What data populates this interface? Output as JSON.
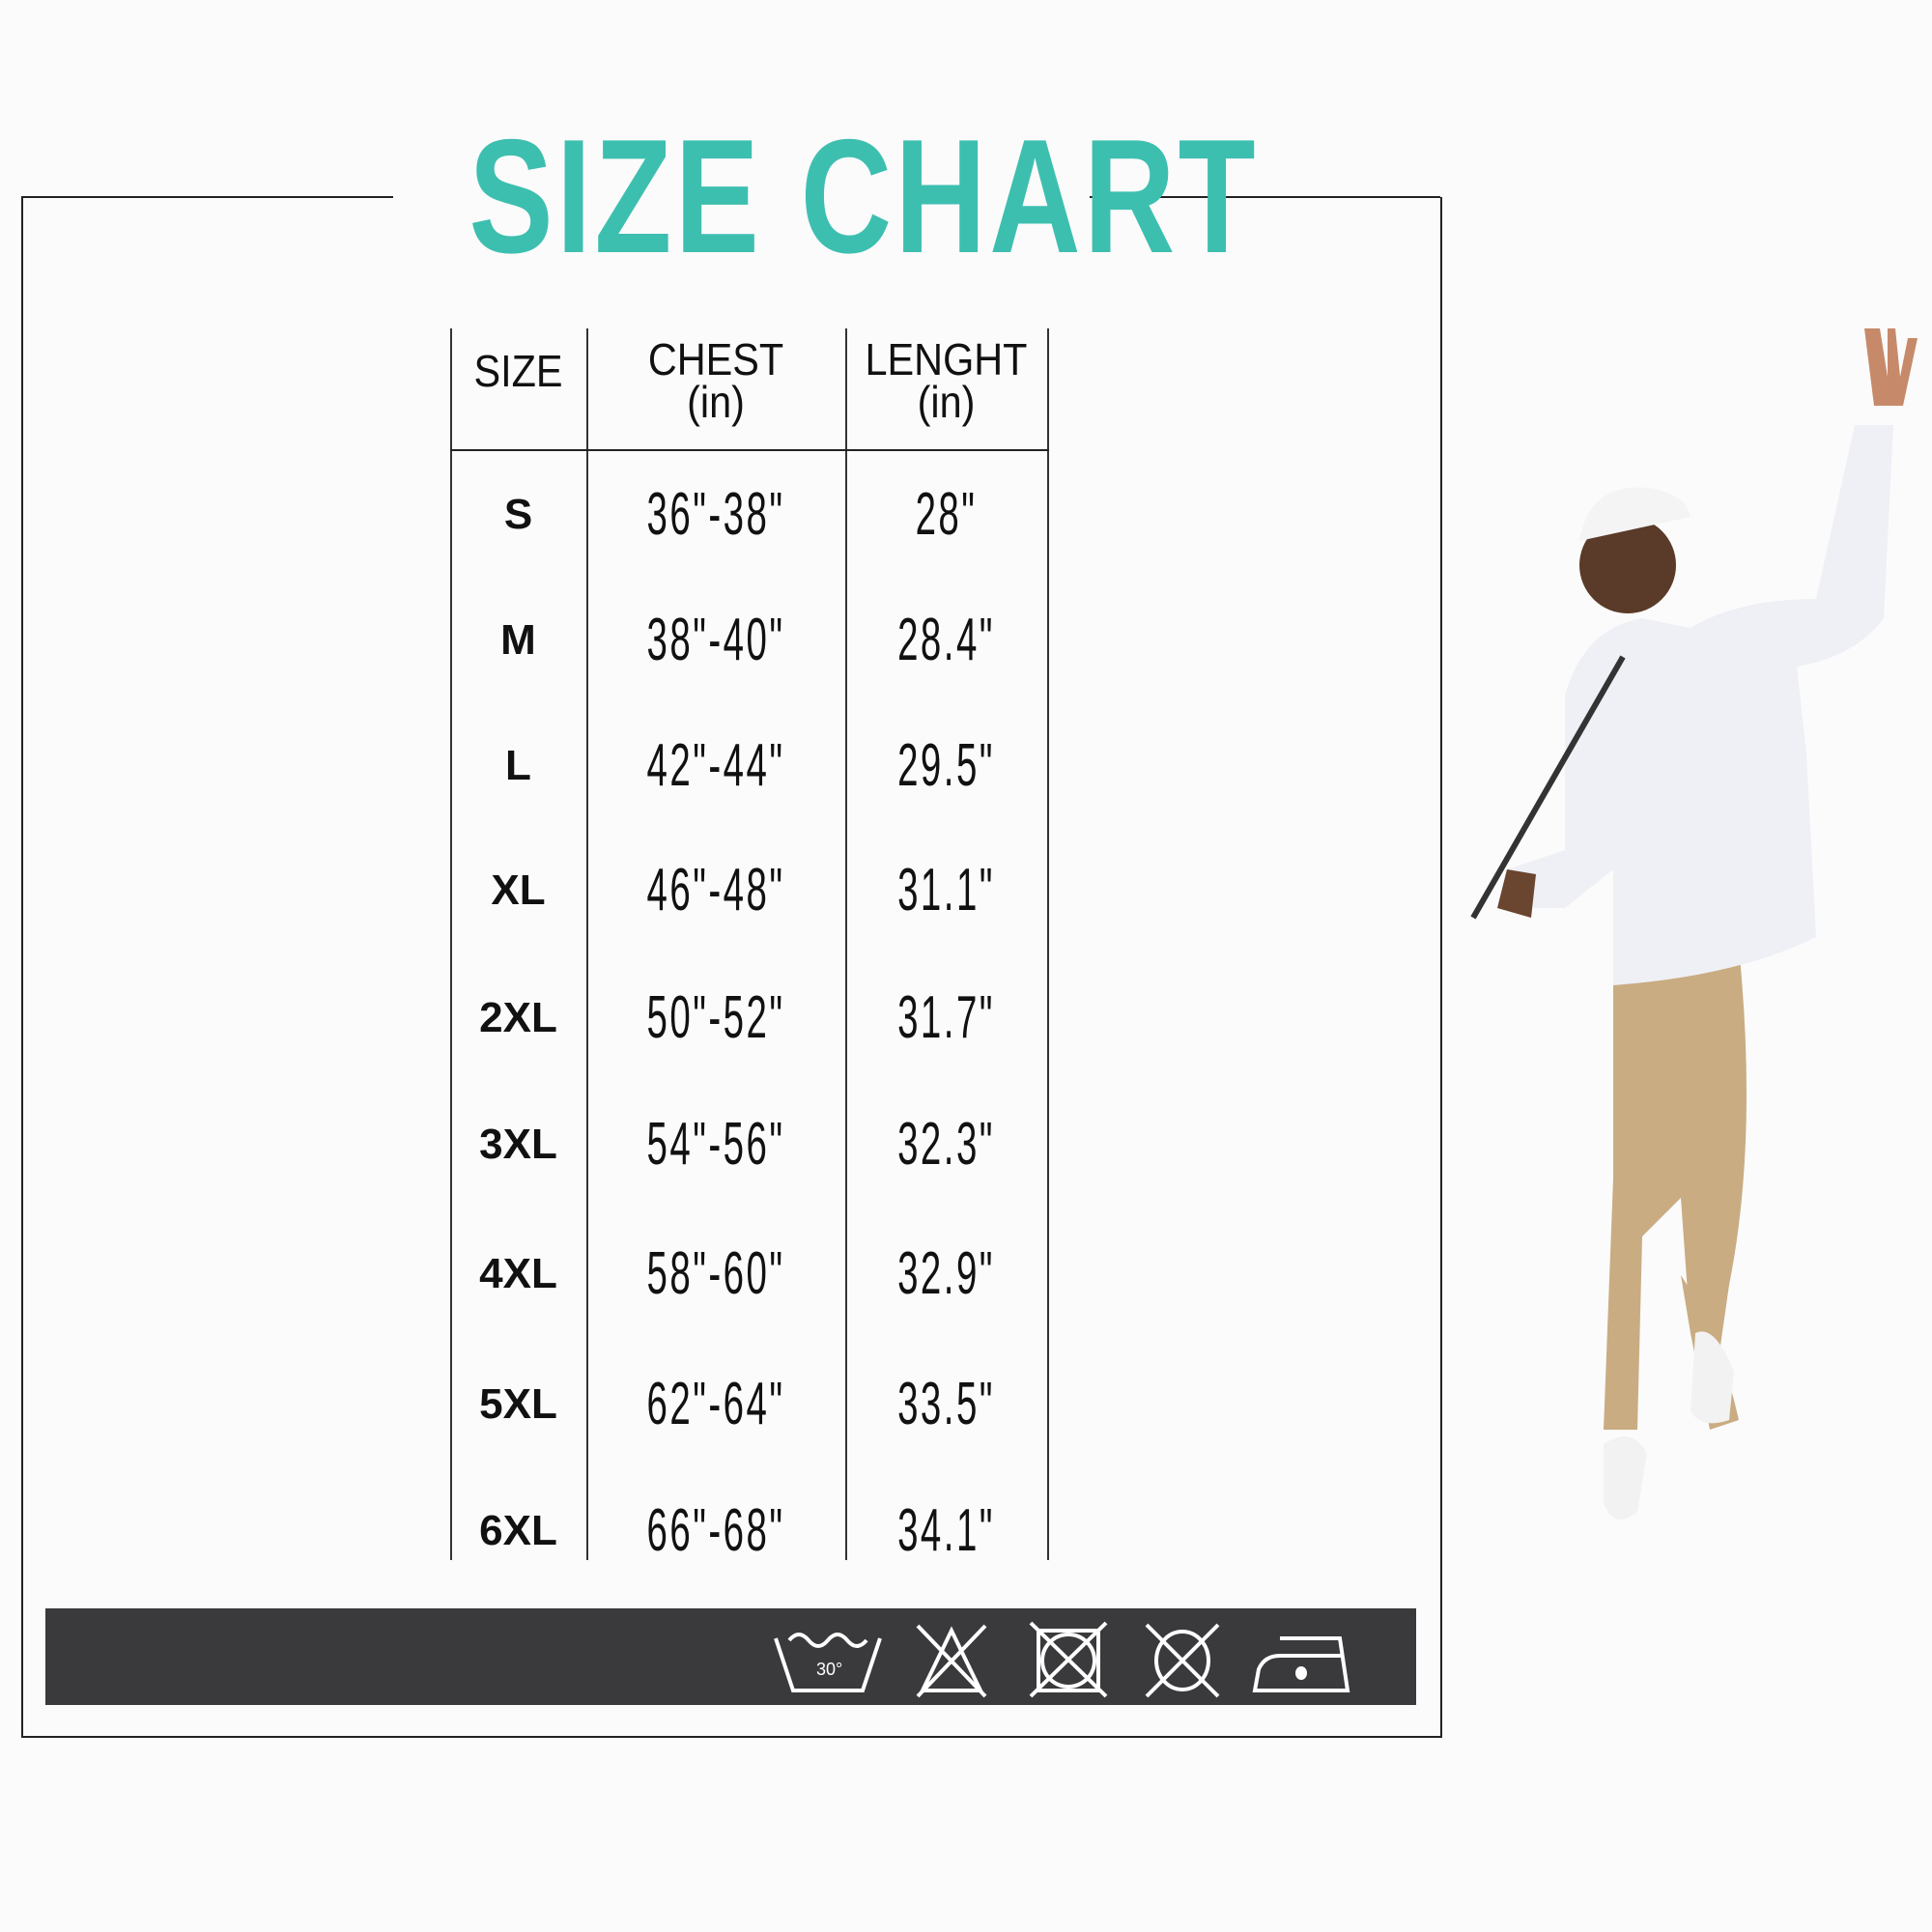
{
  "title": "SIZE CHART",
  "colors": {
    "title": "#3dbfb0",
    "care_bar": "#3a393b"
  },
  "table": {
    "headers": [
      {
        "label": "SIZE",
        "unit": ""
      },
      {
        "label": "CHEST",
        "unit": "(in)"
      },
      {
        "label": "LENGHT",
        "unit": "(in)"
      }
    ],
    "rows": [
      {
        "size": "S",
        "chest": "36\"-38\"",
        "length": "28\""
      },
      {
        "size": "M",
        "chest": "38\"-40\"",
        "length": "28.4\""
      },
      {
        "size": "L",
        "chest": "42\"-44\"",
        "length": "29.5\""
      },
      {
        "size": "XL",
        "chest": "46\"-48\"",
        "length": "31.1\""
      },
      {
        "size": "2XL",
        "chest": "50\"-52\"",
        "length": "31.7\""
      },
      {
        "size": "3XL",
        "chest": "54\"-56\"",
        "length": "32.3\""
      },
      {
        "size": "4XL",
        "chest": "58\"-60\"",
        "length": "32.9\""
      },
      {
        "size": "5XL",
        "chest": "62\"-64\"",
        "length": "33.5\""
      },
      {
        "size": "6XL",
        "chest": "66\"-68\"",
        "length": "34.1\""
      }
    ]
  },
  "care_icons": [
    {
      "name": "wash-30-icon",
      "label": "30°"
    },
    {
      "name": "do-not-bleach-icon"
    },
    {
      "name": "do-not-tumble-dry-icon"
    },
    {
      "name": "do-not-dry-clean-icon"
    },
    {
      "name": "iron-low-icon"
    }
  ]
}
